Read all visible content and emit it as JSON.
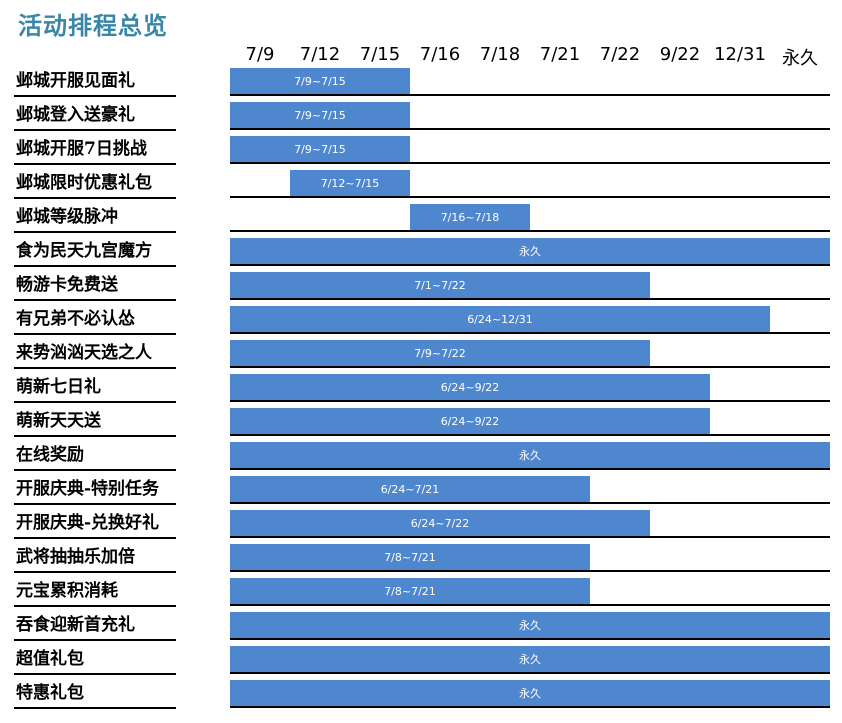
{
  "title": "活动排程总览",
  "columns": [
    "7/9",
    "7/12",
    "7/15",
    "7/16",
    "7/18",
    "7/21",
    "7/22",
    "9/22",
    "12/31",
    "永久"
  ],
  "rows": [
    {
      "name": "邺城开服见面礼",
      "label": "7/9~7/15",
      "start_col": 0,
      "end_col": 3
    },
    {
      "name": "邺城登入送豪礼",
      "label": "7/9~7/15",
      "start_col": 0,
      "end_col": 3
    },
    {
      "name": "邺城开服7日挑战",
      "label": "7/9~7/15",
      "start_col": 0,
      "end_col": 3
    },
    {
      "name": "邺城限时优惠礼包",
      "label": "7/12~7/15",
      "start_col": 1,
      "end_col": 3
    },
    {
      "name": "邺城等级脉冲",
      "label": "7/16~7/18",
      "start_col": 3,
      "end_col": 5
    },
    {
      "name": "食为民天九宫魔方",
      "label": "永久",
      "start_col": 0,
      "end_col": 10
    },
    {
      "name": "畅游卡免费送",
      "label": "7/1~7/22",
      "start_col": 0,
      "end_col": 7
    },
    {
      "name": "有兄弟不必认怂",
      "label": "6/24~12/31",
      "start_col": 0,
      "end_col": 9
    },
    {
      "name": "来势汹汹天选之人",
      "label": "7/9~7/22",
      "start_col": 0,
      "end_col": 7
    },
    {
      "name": "萌新七日礼",
      "label": "6/24~9/22",
      "start_col": 0,
      "end_col": 8
    },
    {
      "name": "萌新天天送",
      "label": "6/24~9/22",
      "start_col": 0,
      "end_col": 8
    },
    {
      "name": "在线奖励",
      "label": "永久",
      "start_col": 0,
      "end_col": 10
    },
    {
      "name": "开服庆典-特别任务",
      "label": "6/24~7/21",
      "start_col": 0,
      "end_col": 6
    },
    {
      "name": "开服庆典-兑换好礼",
      "label": "6/24~7/22",
      "start_col": 0,
      "end_col": 7
    },
    {
      "name": "武将抽抽乐加倍",
      "label": "7/8~7/21",
      "start_col": 0,
      "end_col": 6
    },
    {
      "name": "元宝累积消耗",
      "label": "7/8~7/21",
      "start_col": 0,
      "end_col": 6
    },
    {
      "name": "吞食迎新首充礼",
      "label": "永久",
      "start_col": 0,
      "end_col": 10
    },
    {
      "name": "超值礼包",
      "label": "永久",
      "start_col": 0,
      "end_col": 10
    },
    {
      "name": "特惠礼包",
      "label": "永久",
      "start_col": 0,
      "end_col": 10
    }
  ],
  "colors": {
    "bar": "#4f87cf",
    "title": "#3a86a8"
  }
}
